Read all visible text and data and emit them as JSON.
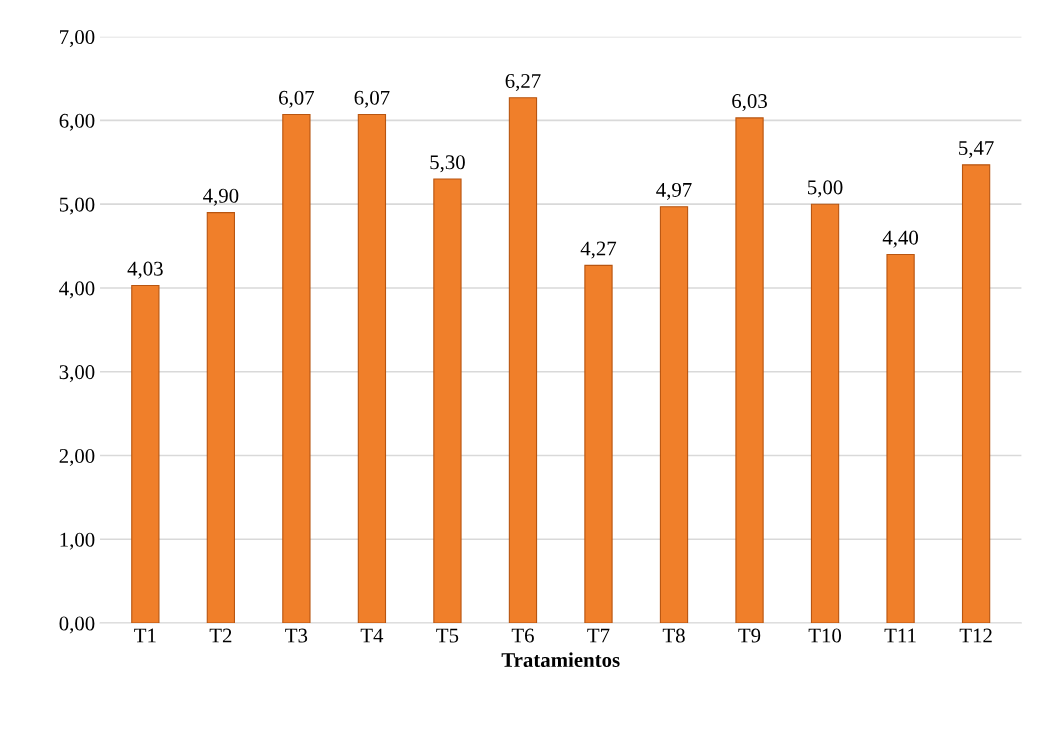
{
  "chart_data": {
    "type": "bar",
    "xlabel": "Tratamientos",
    "categories": [
      "T1",
      "T2",
      "T3",
      "T4",
      "T5",
      "T6",
      "T7",
      "T8",
      "T9",
      "T10",
      "T11",
      "T12"
    ],
    "values": [
      4.03,
      4.9,
      6.07,
      6.07,
      5.3,
      6.27,
      4.27,
      4.97,
      6.03,
      5.0,
      4.4,
      5.47
    ],
    "value_labels": [
      "4,03",
      "4,90",
      "6,07",
      "6,07",
      "5,30",
      "6,27",
      "4,27",
      "4,97",
      "6,03",
      "5,00",
      "4,40",
      "5,47"
    ],
    "color": "#f07f2a",
    "ylim": [
      0,
      7
    ],
    "yticks": [
      {
        "value": 0,
        "label": "0,00"
      },
      {
        "value": 1,
        "label": "1,00"
      },
      {
        "value": 2,
        "label": "2,00"
      },
      {
        "value": 3,
        "label": "3,00"
      },
      {
        "value": 4,
        "label": "4,00"
      },
      {
        "value": 5,
        "label": "5,00"
      },
      {
        "value": 6,
        "label": "6,00"
      },
      {
        "value": 7,
        "label": "7,00"
      }
    ],
    "grid": "y",
    "legend": false
  }
}
